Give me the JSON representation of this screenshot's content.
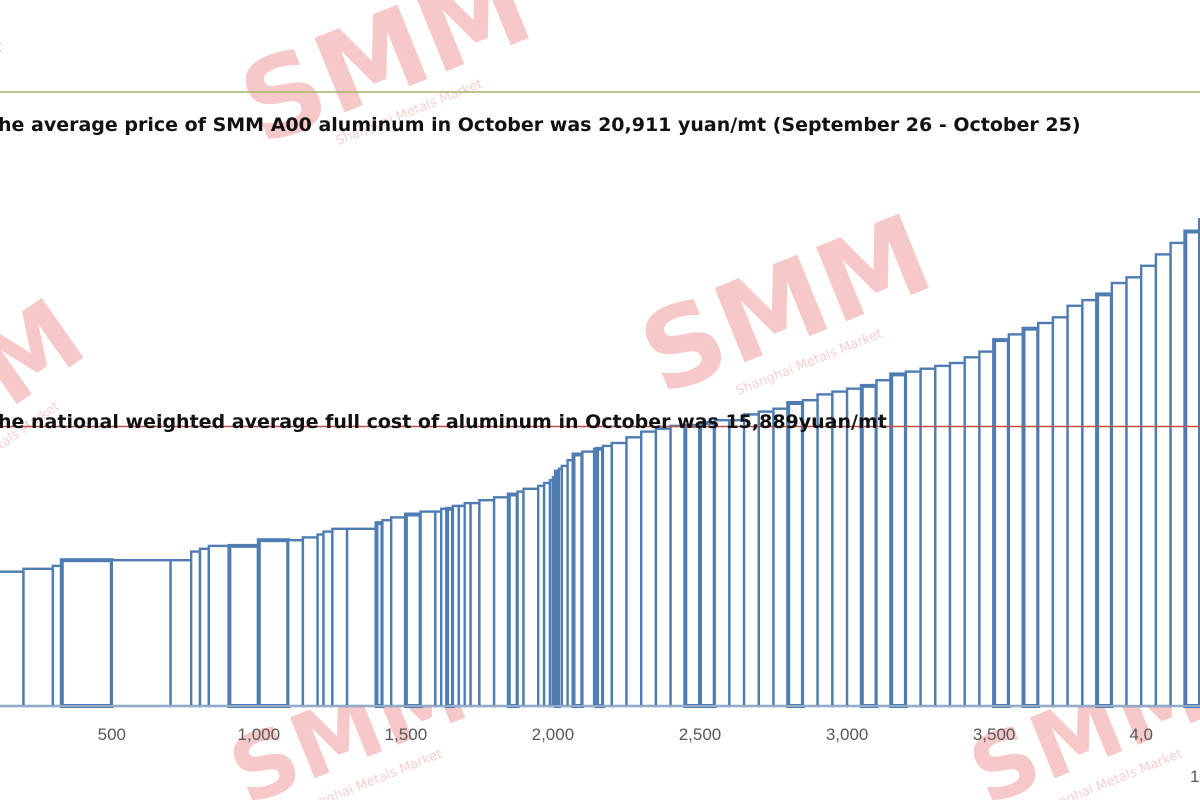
{
  "chart_data": {
    "type": "area",
    "x": [
      0,
      20,
      40,
      50,
      60,
      70,
      80,
      100,
      200,
      300,
      330,
      500,
      700,
      770,
      800,
      830,
      900,
      1000,
      1100,
      1150,
      1200,
      1220,
      1250,
      1300,
      1400,
      1420,
      1450,
      1500,
      1550,
      1600,
      1620,
      1640,
      1660,
      1680,
      1700,
      1720,
      1750,
      1800,
      1850,
      1880,
      1900,
      1950,
      1970,
      1990,
      2000,
      2010,
      2020,
      2030,
      2050,
      2070,
      2100,
      2140,
      2150,
      2170,
      2200,
      2250,
      2300,
      2350,
      2400,
      2450,
      2500,
      2550,
      2600,
      2650,
      2700,
      2750,
      2800,
      2850,
      2900,
      2950,
      3000,
      3050,
      3100,
      3150,
      3200,
      3250,
      3300,
      3350,
      3400,
      3450,
      3500,
      3550,
      3600,
      3650,
      3700,
      3750,
      3800,
      3850,
      3900,
      3950,
      4000,
      4050,
      4100,
      4150,
      4200
    ],
    "values": [
      13300,
      13300,
      13300,
      13300,
      13300,
      13300,
      13300,
      13350,
      13400,
      13450,
      13550,
      13550,
      13550,
      13700,
      13750,
      13800,
      13800,
      13900,
      13900,
      13950,
      14000,
      14050,
      14100,
      14100,
      14200,
      14250,
      14300,
      14350,
      14400,
      14400,
      14450,
      14450,
      14500,
      14500,
      14550,
      14550,
      14600,
      14650,
      14700,
      14750,
      14800,
      14850,
      14900,
      14950,
      15000,
      15100,
      15150,
      15200,
      15300,
      15400,
      15450,
      15500,
      15500,
      15550,
      15600,
      15700,
      15800,
      15850,
      15900,
      15900,
      15950,
      16000,
      16000,
      16100,
      16150,
      16200,
      16300,
      16350,
      16450,
      16500,
      16550,
      16600,
      16700,
      16800,
      16850,
      16900,
      16950,
      17000,
      17100,
      17200,
      17400,
      17500,
      17600,
      17700,
      17800,
      18000,
      18100,
      18200,
      18400,
      18500,
      18700,
      18900,
      19100,
      19300,
      19500
    ],
    "annotations": {
      "price_line": {
        "text": "he average price of SMM A00 aluminum in October was 20,911 yuan/mt (September 26 - October 25)",
        "value": 20911,
        "color": "#a3b26b"
      },
      "cost_line": {
        "text": "he national weighted average full cost of aluminum in October was 15,889yuan/mt",
        "value": 15889,
        "color": "#c05046"
      }
    },
    "x_ticks": [
      "500",
      "1,000",
      "1,500",
      "2,000",
      "2,500",
      "3,000",
      "3,500",
      "4,0"
    ],
    "x_tick_values": [
      500,
      1000,
      1500,
      2000,
      2500,
      3000,
      3500,
      4000
    ],
    "ylim": [
      11000,
      23000
    ],
    "xlim": [
      120,
      4200
    ],
    "series_color": "#4f7db3",
    "legend": "none",
    "grid": false,
    "title": "",
    "xlabel": "",
    "ylabel": ""
  },
  "fragments": {
    "top_left": "t",
    "bottom_right": "1"
  },
  "watermark": {
    "text": "SMM",
    "subtext": "Shanghai Metals Market",
    "color": "#f4b6b6"
  }
}
